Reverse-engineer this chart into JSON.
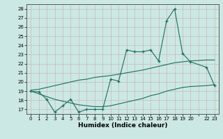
{
  "xlabel": "Humidex (Indice chaleur)",
  "bg_color": "#cce8e4",
  "grid_color": "#b0d8d2",
  "line_color": "#1a6e5e",
  "xlim": [
    -0.5,
    23.5
  ],
  "ylim": [
    16.5,
    28.5
  ],
  "yticks": [
    17,
    18,
    19,
    20,
    21,
    22,
    23,
    24,
    25,
    26,
    27,
    28
  ],
  "xtick_labels": [
    "0",
    "1",
    "2",
    "3",
    "4",
    "5",
    "6",
    "7",
    "8",
    "9",
    "10",
    "11",
    "12",
    "13",
    "14",
    "15",
    "16",
    "17",
    "18",
    "19",
    "20",
    "",
    "22",
    "23"
  ],
  "x_positions": [
    0,
    1,
    2,
    3,
    4,
    5,
    6,
    7,
    8,
    9,
    10,
    11,
    12,
    13,
    14,
    15,
    16,
    17,
    18,
    19,
    20,
    21,
    22,
    23
  ],
  "line1_x": [
    0,
    1,
    2,
    3,
    4,
    5,
    6,
    7,
    8,
    9,
    10,
    11,
    12,
    13,
    14,
    15,
    16,
    17,
    18,
    19,
    20,
    22,
    23
  ],
  "line1_y": [
    19.0,
    18.9,
    18.1,
    16.7,
    17.4,
    18.1,
    16.7,
    17.0,
    17.0,
    17.0,
    20.3,
    20.1,
    23.5,
    23.3,
    23.3,
    23.5,
    22.3,
    26.7,
    28.0,
    23.1,
    22.2,
    21.6,
    19.6
  ],
  "line2_x": [
    0,
    1,
    2,
    3,
    4,
    5,
    6,
    7,
    8,
    9,
    10,
    11,
    12,
    13,
    14,
    15,
    16,
    17,
    18,
    19,
    20,
    22,
    23
  ],
  "line2_y": [
    19.1,
    19.2,
    19.4,
    19.6,
    19.8,
    20.0,
    20.2,
    20.3,
    20.5,
    20.6,
    20.7,
    20.85,
    21.0,
    21.15,
    21.3,
    21.5,
    21.7,
    21.9,
    22.1,
    22.2,
    22.3,
    22.4,
    22.4
  ],
  "line3_x": [
    0,
    1,
    2,
    3,
    4,
    5,
    6,
    7,
    8,
    9,
    10,
    11,
    12,
    13,
    14,
    15,
    16,
    17,
    18,
    19,
    20,
    22,
    23
  ],
  "line3_y": [
    19.0,
    18.7,
    18.4,
    18.1,
    17.9,
    17.7,
    17.5,
    17.4,
    17.3,
    17.3,
    17.4,
    17.6,
    17.8,
    18.0,
    18.2,
    18.5,
    18.7,
    19.0,
    19.2,
    19.4,
    19.5,
    19.6,
    19.7
  ]
}
